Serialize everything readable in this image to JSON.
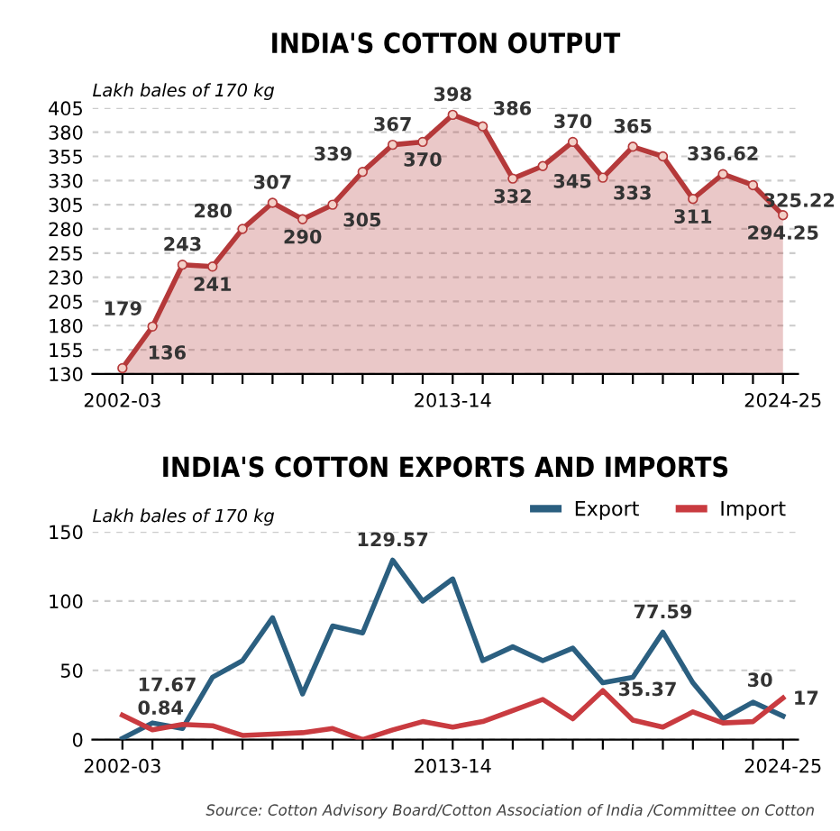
{
  "chart_data": [
    {
      "type": "area",
      "title": "INDIA'S COTTON OUTPUT",
      "ylabel": "Lakh bales of 170 kg",
      "categories": [
        "2002-03",
        null,
        null,
        null,
        null,
        null,
        null,
        null,
        null,
        null,
        null,
        "2013-14",
        null,
        null,
        null,
        null,
        null,
        null,
        null,
        null,
        null,
        null,
        "2024-25"
      ],
      "series": [
        {
          "color": "#b5393a",
          "values": [
            136,
            179,
            243,
            241,
            280,
            307,
            290,
            305,
            339,
            367,
            370,
            398,
            386,
            332,
            345,
            370,
            333,
            365,
            355,
            311,
            336.62,
            325.22,
            294.25
          ],
          "value_labels": [
            "136",
            "179",
            "243",
            "241",
            "280",
            "307",
            "290",
            "305",
            "339",
            "367",
            "370",
            "398",
            "386",
            "332",
            "345",
            "370",
            "333",
            "365",
            null,
            "311",
            "336.62",
            "325.22",
            "294.25"
          ]
        }
      ],
      "ylim": [
        130,
        405
      ],
      "yticks": [
        130,
        155,
        180,
        205,
        230,
        255,
        280,
        305,
        330,
        355,
        380,
        405
      ],
      "grid": "y",
      "marker": "circle",
      "line_style": "solid"
    },
    {
      "type": "line",
      "title": "INDIA'S COTTON EXPORTS AND IMPORTS",
      "ylabel": "Lakh bales of 170 kg",
      "categories": [
        "2002-03",
        null,
        null,
        null,
        null,
        null,
        null,
        null,
        null,
        null,
        null,
        "2013-14",
        null,
        null,
        null,
        null,
        null,
        null,
        null,
        null,
        null,
        null,
        "2024-25"
      ],
      "series": [
        {
          "name": "Export",
          "color": "#2b5f80",
          "values": [
            0.84,
            12,
            8,
            45,
            57,
            88,
            33,
            82,
            77,
            129.57,
            100,
            116,
            57,
            67,
            57,
            66,
            41,
            45,
            77.59,
            41,
            15,
            27,
            17
          ],
          "value_labels": [
            "0.84",
            null,
            null,
            null,
            null,
            null,
            null,
            null,
            null,
            "129.57",
            null,
            null,
            null,
            null,
            null,
            null,
            null,
            null,
            "77.59",
            null,
            null,
            null,
            "17"
          ]
        },
        {
          "name": "Import",
          "color": "#c93b40",
          "values": [
            17.67,
            7,
            11,
            10,
            3,
            4,
            5,
            8,
            0,
            7,
            13,
            9,
            13,
            21,
            29,
            15,
            35.37,
            14,
            9,
            20,
            12,
            13,
            30
          ],
          "value_labels": [
            "17.67",
            null,
            null,
            null,
            null,
            null,
            null,
            null,
            null,
            null,
            null,
            null,
            null,
            null,
            null,
            null,
            "35.37",
            null,
            null,
            null,
            null,
            null,
            "30"
          ]
        }
      ],
      "ylim": [
        0,
        150
      ],
      "yticks": [
        0,
        50,
        100,
        150
      ],
      "grid": "y",
      "legend": "top right",
      "line_style": "solid",
      "annotations": [
        "Source: Cotton Advisory Board/Cotton Association of India /Committee on Cotton"
      ]
    }
  ]
}
